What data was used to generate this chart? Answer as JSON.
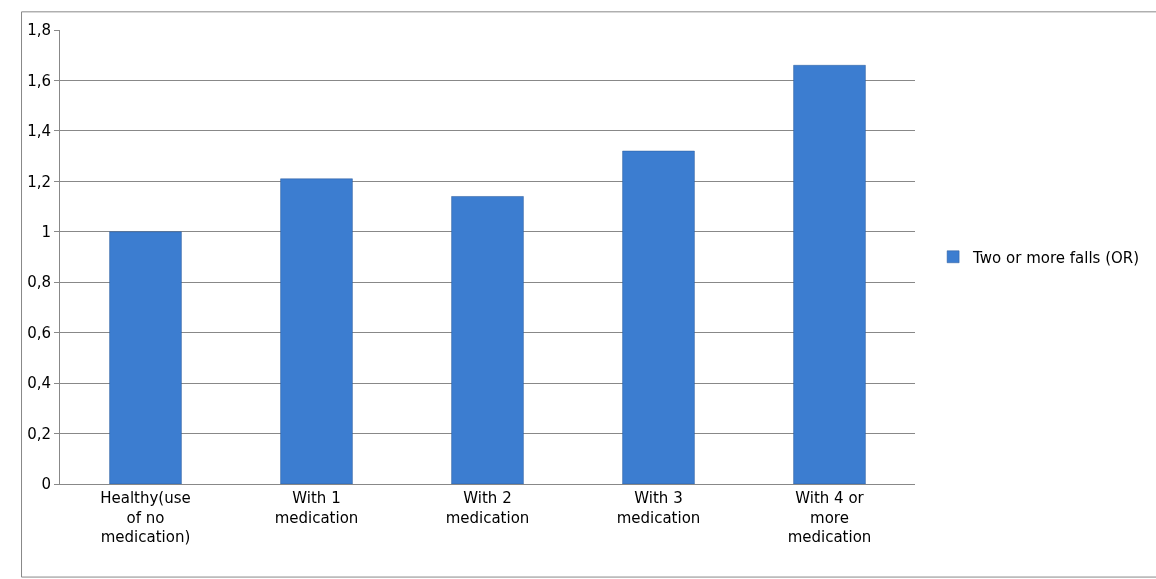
{
  "chart_data": {
    "type": "bar",
    "categories": [
      "Healthy(use of no medication)",
      "With 1 medication",
      "With 2 medication",
      "With 3 medication",
      "With 4 or more medication"
    ],
    "series": [
      {
        "name": "Two or more falls (OR)",
        "color": "#3c7dd0",
        "values": [
          1.0,
          1.21,
          1.14,
          1.32,
          1.66
        ]
      }
    ],
    "ylim": [
      0,
      1.8
    ],
    "yticks": [
      0,
      {
        "value": 0.2,
        "label": "0,2"
      },
      {
        "value": 0.4,
        "label": "0,4"
      },
      {
        "value": 0.6,
        "label": "0,6"
      },
      {
        "value": 0.8,
        "label": "0,8"
      },
      1,
      {
        "value": 1.2,
        "label": "1,2"
      },
      {
        "value": 1.4,
        "label": "1,4"
      },
      {
        "value": 1.6,
        "label": "1,6"
      },
      {
        "value": 1.8,
        "label": "1,8"
      }
    ],
    "grid": "y",
    "legend": "right"
  }
}
